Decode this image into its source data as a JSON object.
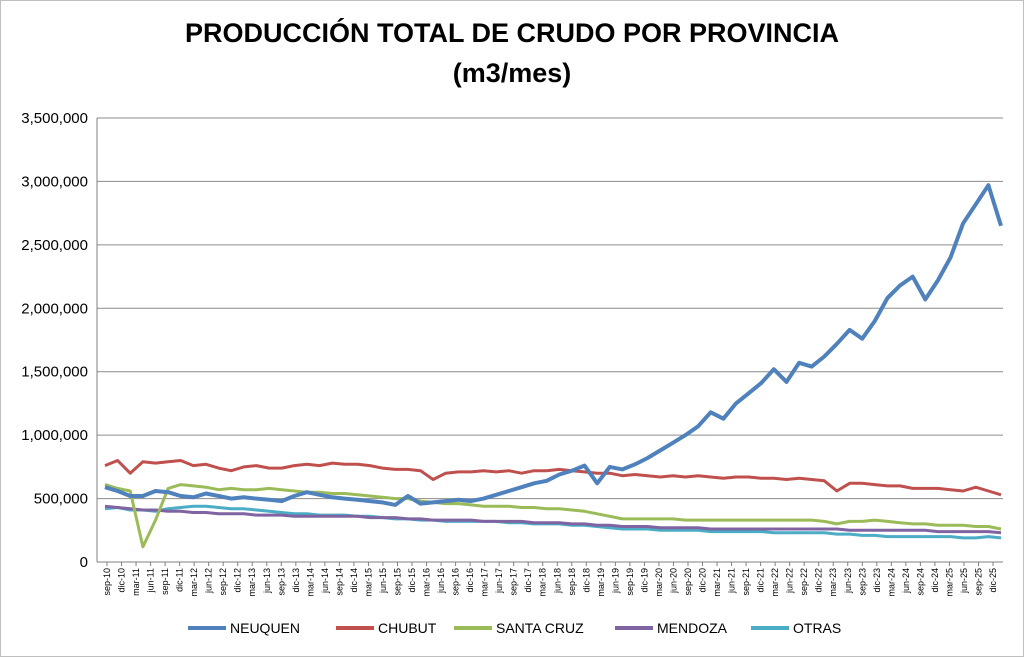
{
  "chart_data": {
    "type": "line",
    "title": "PRODUCCIÓN TOTAL DE CRUDO POR PROVINCIA",
    "subtitle": "(m3/mes)",
    "ylim": [
      0,
      3500000
    ],
    "y_ticks": [
      "0",
      "500,000",
      "1,000,000",
      "1,500,000",
      "2,000,000",
      "2,500,000",
      "3,000,000",
      "3,500,000"
    ],
    "x_ticks": [
      "sep-10",
      "dic-10",
      "mar-11",
      "jun-11",
      "sep-11",
      "dic-11",
      "mar-12",
      "jun-12",
      "sep-12",
      "dic-12",
      "mar-13",
      "jun-13",
      "sep-13",
      "dic-13",
      "mar-14",
      "jun-14",
      "sep-14",
      "dic-14",
      "mar-15",
      "jun-15",
      "sep-15",
      "dic-15",
      "mar-16",
      "jun-16",
      "sep-16",
      "dic-16",
      "mar-17",
      "jun-17",
      "sep-17",
      "dic-17",
      "mar-18",
      "jun-18",
      "sep-18",
      "dic-18",
      "mar-19",
      "jun-19",
      "sep-19",
      "dic-19",
      "mar-20",
      "jun-20",
      "sep-20",
      "dic-20",
      "mar-21",
      "jun-21",
      "sep-21",
      "dic-21",
      "mar-22",
      "jun-22",
      "sep-22",
      "dic-22",
      "mar-23",
      "jun-23",
      "sep-23",
      "dic-23",
      "mar-24",
      "jun-24",
      "sep-24",
      "dic-24",
      "mar-25",
      "jun-25",
      "sep-25",
      "dic-25"
    ],
    "grid": "horizontal",
    "legend_position": "bottom",
    "series": [
      {
        "name": "NEUQUEN",
        "color": "#4f81bd",
        "values": [
          590000,
          560000,
          520000,
          520000,
          560000,
          550000,
          520000,
          510000,
          540000,
          520000,
          500000,
          510000,
          500000,
          490000,
          480000,
          520000,
          550000,
          530000,
          510000,
          500000,
          490000,
          480000,
          470000,
          450000,
          520000,
          460000,
          470000,
          480000,
          490000,
          480000,
          500000,
          530000,
          560000,
          590000,
          620000,
          640000,
          690000,
          720000,
          760000,
          620000,
          750000,
          730000,
          770000,
          820000,
          880000,
          940000,
          1000000,
          1070000,
          1180000,
          1130000,
          1250000,
          1330000,
          1410000,
          1520000,
          1420000,
          1570000,
          1540000,
          1620000,
          1720000,
          1830000,
          1760000,
          1900000,
          2080000,
          2180000,
          2250000,
          2070000,
          2220000,
          2400000,
          2670000,
          2820000,
          2970000,
          2650000
        ]
      },
      {
        "name": "CHUBUT",
        "color": "#c0504d",
        "values": [
          760000,
          800000,
          700000,
          790000,
          780000,
          790000,
          800000,
          760000,
          770000,
          740000,
          720000,
          750000,
          760000,
          740000,
          740000,
          760000,
          770000,
          760000,
          780000,
          770000,
          770000,
          760000,
          740000,
          730000,
          730000,
          720000,
          650000,
          700000,
          710000,
          710000,
          720000,
          710000,
          720000,
          700000,
          720000,
          720000,
          730000,
          720000,
          710000,
          700000,
          700000,
          680000,
          690000,
          680000,
          670000,
          680000,
          670000,
          680000,
          670000,
          660000,
          670000,
          670000,
          660000,
          660000,
          650000,
          660000,
          650000,
          640000,
          560000,
          620000,
          620000,
          610000,
          600000,
          600000,
          580000,
          580000,
          580000,
          570000,
          560000,
          590000,
          560000,
          530000
        ]
      },
      {
        "name": "SANTA CRUZ",
        "color": "#9bbb59",
        "values": [
          610000,
          580000,
          560000,
          120000,
          330000,
          580000,
          610000,
          600000,
          590000,
          570000,
          580000,
          570000,
          570000,
          580000,
          570000,
          560000,
          550000,
          550000,
          540000,
          540000,
          530000,
          520000,
          510000,
          500000,
          500000,
          480000,
          470000,
          460000,
          460000,
          450000,
          440000,
          440000,
          440000,
          430000,
          430000,
          420000,
          420000,
          410000,
          400000,
          380000,
          360000,
          340000,
          340000,
          340000,
          340000,
          340000,
          330000,
          330000,
          330000,
          330000,
          330000,
          330000,
          330000,
          330000,
          330000,
          330000,
          330000,
          320000,
          300000,
          320000,
          320000,
          330000,
          320000,
          310000,
          300000,
          300000,
          290000,
          290000,
          290000,
          280000,
          280000,
          260000
        ]
      },
      {
        "name": "MENDOZA",
        "color": "#8064a2",
        "values": [
          440000,
          430000,
          420000,
          410000,
          410000,
          400000,
          400000,
          390000,
          390000,
          380000,
          380000,
          380000,
          370000,
          370000,
          370000,
          360000,
          360000,
          360000,
          360000,
          360000,
          360000,
          350000,
          350000,
          350000,
          340000,
          340000,
          330000,
          330000,
          330000,
          330000,
          320000,
          320000,
          320000,
          320000,
          310000,
          310000,
          310000,
          300000,
          300000,
          290000,
          290000,
          280000,
          280000,
          280000,
          270000,
          270000,
          270000,
          270000,
          260000,
          260000,
          260000,
          260000,
          260000,
          260000,
          260000,
          260000,
          260000,
          260000,
          260000,
          250000,
          250000,
          250000,
          250000,
          250000,
          250000,
          250000,
          240000,
          240000,
          240000,
          240000,
          240000,
          230000
        ]
      },
      {
        "name": "OTRAS",
        "color": "#4bacc6",
        "values": [
          420000,
          430000,
          410000,
          410000,
          400000,
          420000,
          430000,
          440000,
          440000,
          430000,
          420000,
          420000,
          410000,
          400000,
          390000,
          380000,
          380000,
          370000,
          370000,
          370000,
          360000,
          360000,
          350000,
          340000,
          340000,
          330000,
          330000,
          320000,
          320000,
          320000,
          320000,
          320000,
          310000,
          310000,
          300000,
          300000,
          300000,
          290000,
          290000,
          280000,
          270000,
          260000,
          260000,
          260000,
          250000,
          250000,
          250000,
          250000,
          240000,
          240000,
          240000,
          240000,
          240000,
          230000,
          230000,
          230000,
          230000,
          230000,
          220000,
          220000,
          210000,
          210000,
          200000,
          200000,
          200000,
          200000,
          200000,
          200000,
          190000,
          190000,
          200000,
          190000
        ]
      }
    ]
  }
}
